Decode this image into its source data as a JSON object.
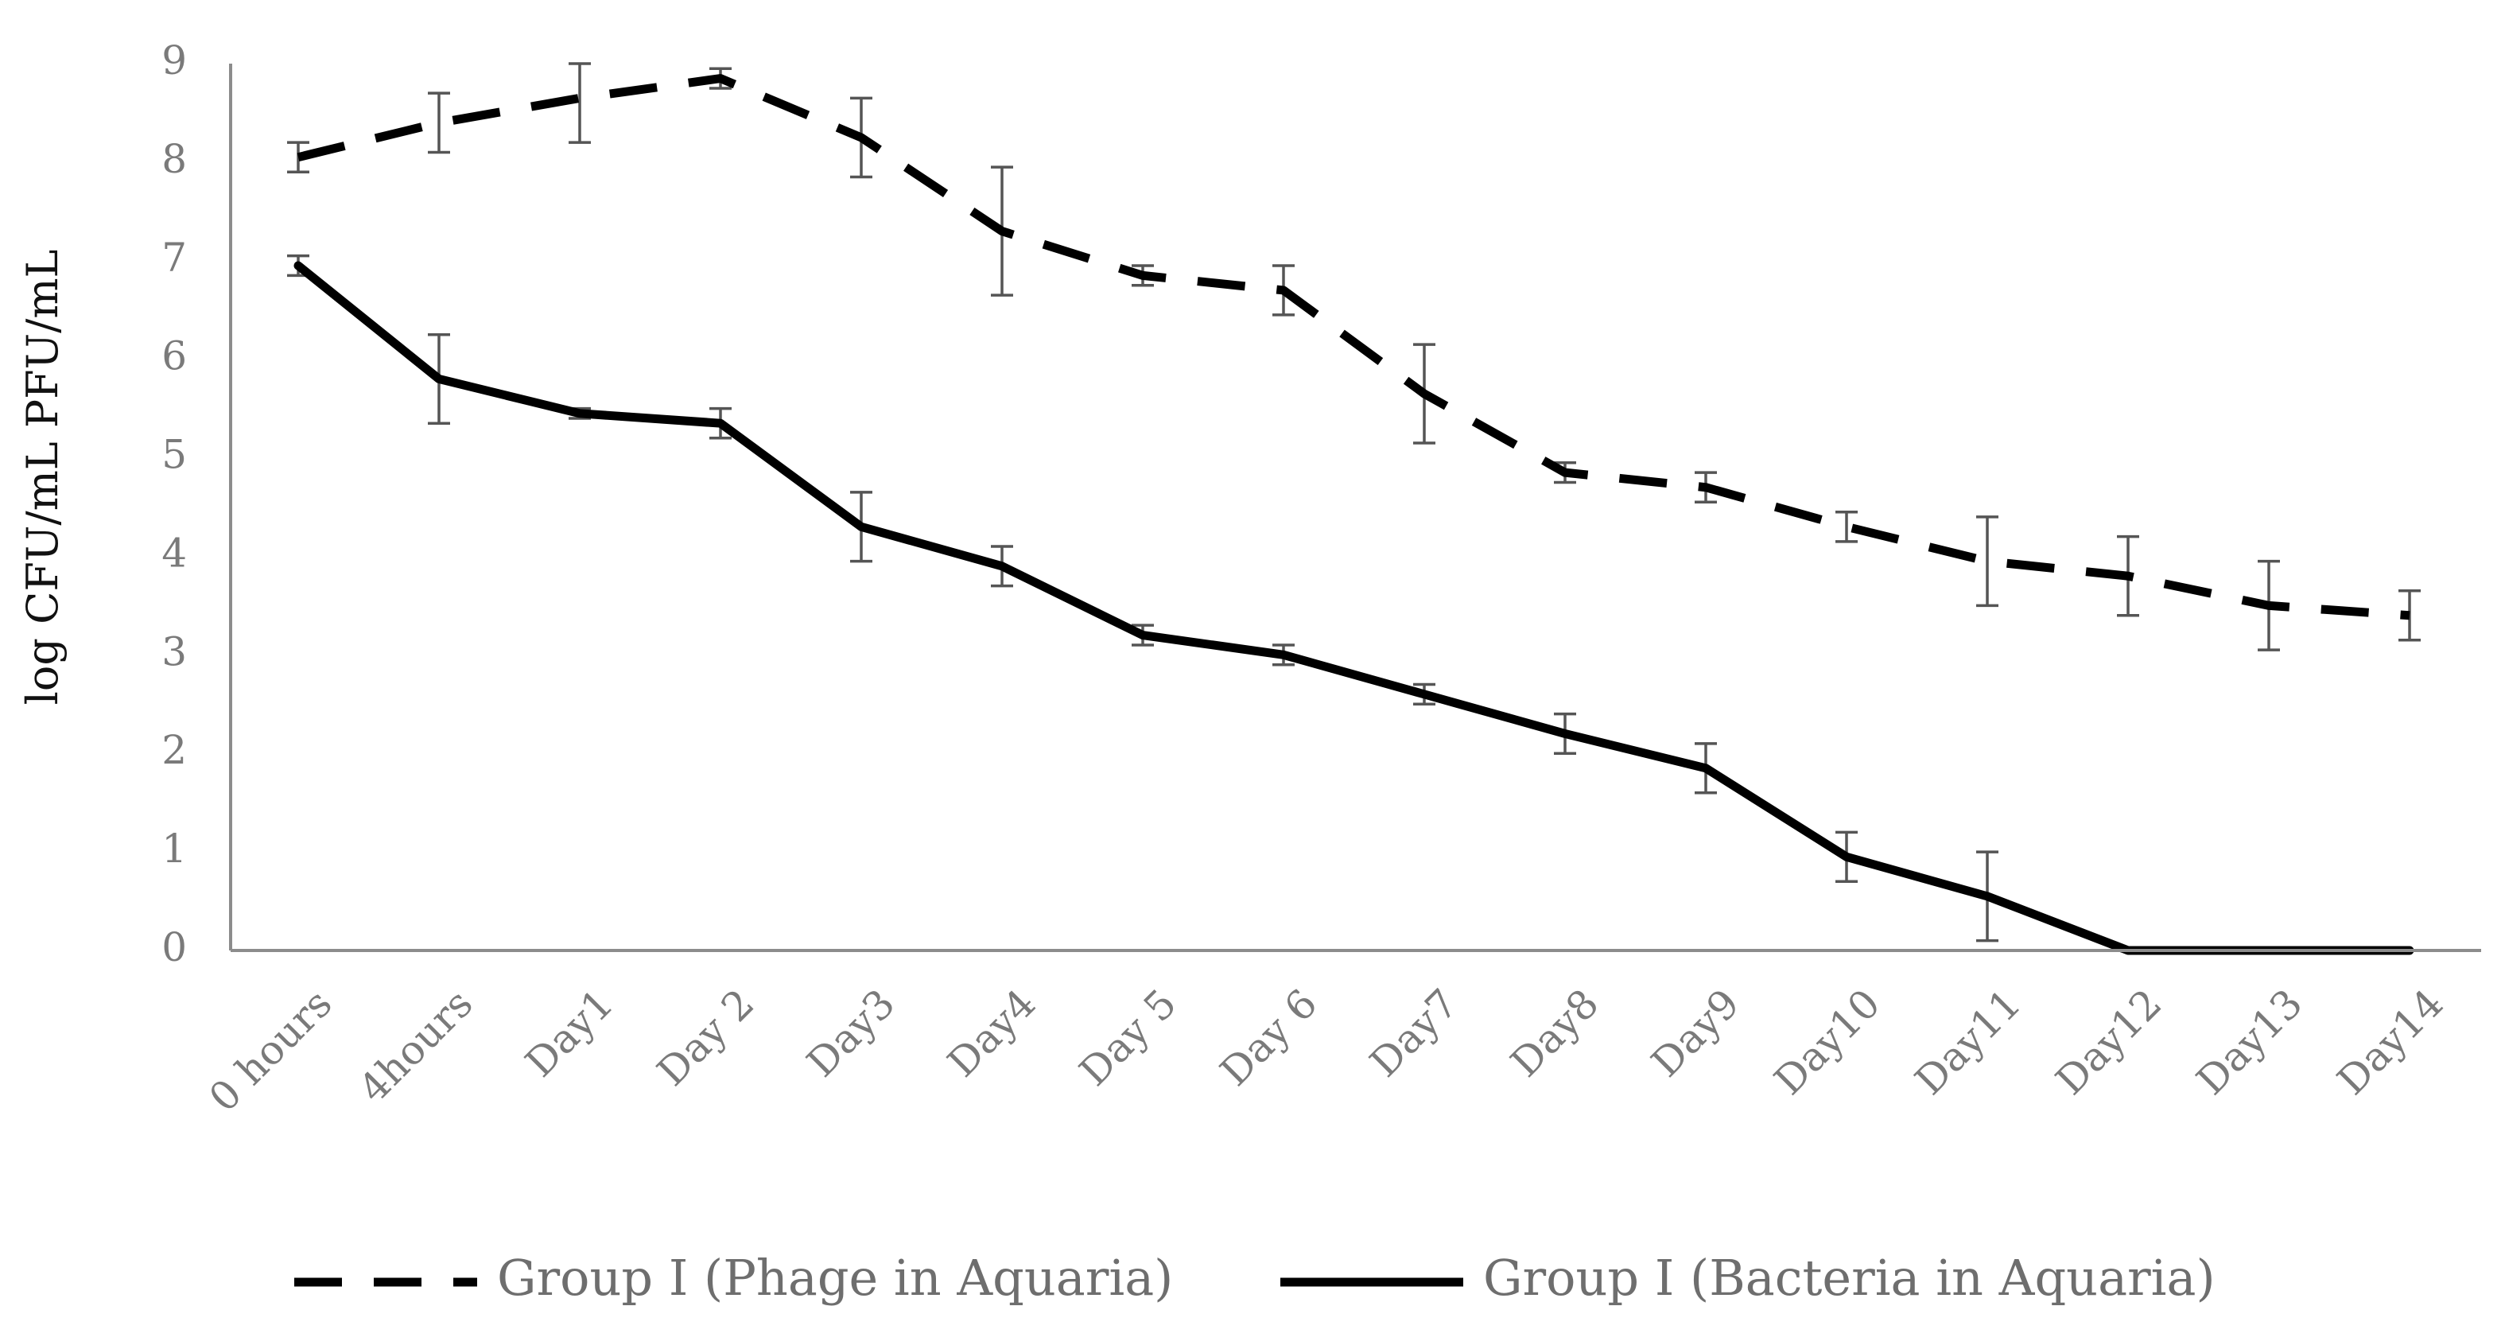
{
  "chart_data": {
    "type": "line",
    "title": "",
    "xlabel": "",
    "ylabel": "log CFU/mL PFU/mL",
    "ylim": [
      0,
      9
    ],
    "yticks": [
      0,
      1,
      2,
      3,
      4,
      5,
      6,
      7,
      8,
      9
    ],
    "grid": false,
    "legend_position": "bottom",
    "categories": [
      "0 hours",
      "4hours",
      "Day1",
      "Day 2",
      "Day3",
      "Day4",
      "Day 5",
      "Day 6",
      "Day7",
      "Day8",
      "Day9",
      "Day10",
      "Day11",
      "Day12",
      "Day13",
      "Day14"
    ],
    "series": [
      {
        "name": "Group I (Phage in Aquaria)",
        "style": "dashed",
        "color": "#000000",
        "values": [
          8.05,
          8.4,
          8.65,
          8.85,
          8.25,
          7.3,
          6.85,
          6.7,
          5.65,
          4.85,
          4.7,
          4.3,
          3.95,
          3.8,
          3.5,
          3.4
        ],
        "errors": [
          0.15,
          0.3,
          0.45,
          0.1,
          0.4,
          0.65,
          0.1,
          0.25,
          0.5,
          0.1,
          0.15,
          0.15,
          0.45,
          0.4,
          0.45,
          0.25
        ]
      },
      {
        "name": "Group I (Bacteria in Aquaria)",
        "style": "solid",
        "color": "#000000",
        "values": [
          6.95,
          5.8,
          5.45,
          5.35,
          4.3,
          3.9,
          3.2,
          3.0,
          2.6,
          2.2,
          1.85,
          0.95,
          0.55,
          0.0,
          0.0,
          0.0
        ],
        "errors": [
          0.1,
          0.45,
          0.05,
          0.15,
          0.35,
          0.2,
          0.1,
          0.1,
          0.1,
          0.2,
          0.25,
          0.25,
          0.45,
          0.0,
          0.0,
          0.0
        ]
      }
    ]
  }
}
